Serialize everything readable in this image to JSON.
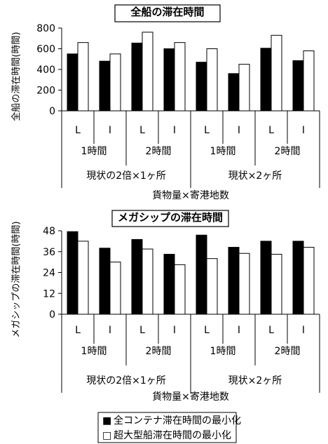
{
  "chart_data": [
    {
      "type": "bar",
      "title": "全船の滞在時間",
      "ylabel": "全船の滞在時間(時間)",
      "xlabel": "貨物量×寄港地数",
      "ylim": [
        0,
        800
      ],
      "yticks": [
        0,
        200,
        400,
        600,
        800
      ],
      "categories": [
        "L",
        "I",
        "L",
        "I",
        "L",
        "I",
        "L",
        "I"
      ],
      "groups_level2": [
        "1時間",
        "2時間",
        "1時間",
        "2時間"
      ],
      "groups_level3": [
        "現状の2倍×1ヶ所",
        "現状×2ヶ所"
      ],
      "series": [
        {
          "name": "全コンテナ滞在時間の最小化",
          "color": "#000000",
          "values": [
            550,
            480,
            655,
            600,
            470,
            360,
            605,
            485
          ]
        },
        {
          "name": "超大型船滞在時間の最小化",
          "color": "#ffffff",
          "values": [
            660,
            550,
            760,
            660,
            600,
            450,
            730,
            580
          ]
        }
      ]
    },
    {
      "type": "bar",
      "title": "メガシップの滞在時間",
      "ylabel": "メガシップの滞在時間(時間)",
      "xlabel": "貨物量×寄港地数",
      "ylim": [
        0,
        48
      ],
      "yticks": [
        0,
        12,
        24,
        36,
        48
      ],
      "categories": [
        "L",
        "I",
        "L",
        "I",
        "L",
        "I",
        "L",
        "I"
      ],
      "groups_level2": [
        "1時間",
        "2時間",
        "1時間",
        "2時間"
      ],
      "groups_level3": [
        "現状の2倍×1ヶ所",
        "現状×2ヶ所"
      ],
      "series": [
        {
          "name": "全コンテナ滞在時間の最小化",
          "color": "#000000",
          "values": [
            47.5,
            38,
            43,
            34.5,
            45.5,
            38.5,
            42,
            42
          ]
        },
        {
          "name": "超大型船滞在時間の最小化",
          "color": "#ffffff",
          "values": [
            42,
            30,
            37.5,
            28.5,
            32,
            35,
            34.5,
            38.5
          ]
        }
      ]
    }
  ],
  "legend": {
    "items": [
      {
        "marker": "■",
        "label": "全コンテナ滞在時間の最小化"
      },
      {
        "marker": "□",
        "label": "超大型船滞在時間の最小化"
      }
    ]
  }
}
